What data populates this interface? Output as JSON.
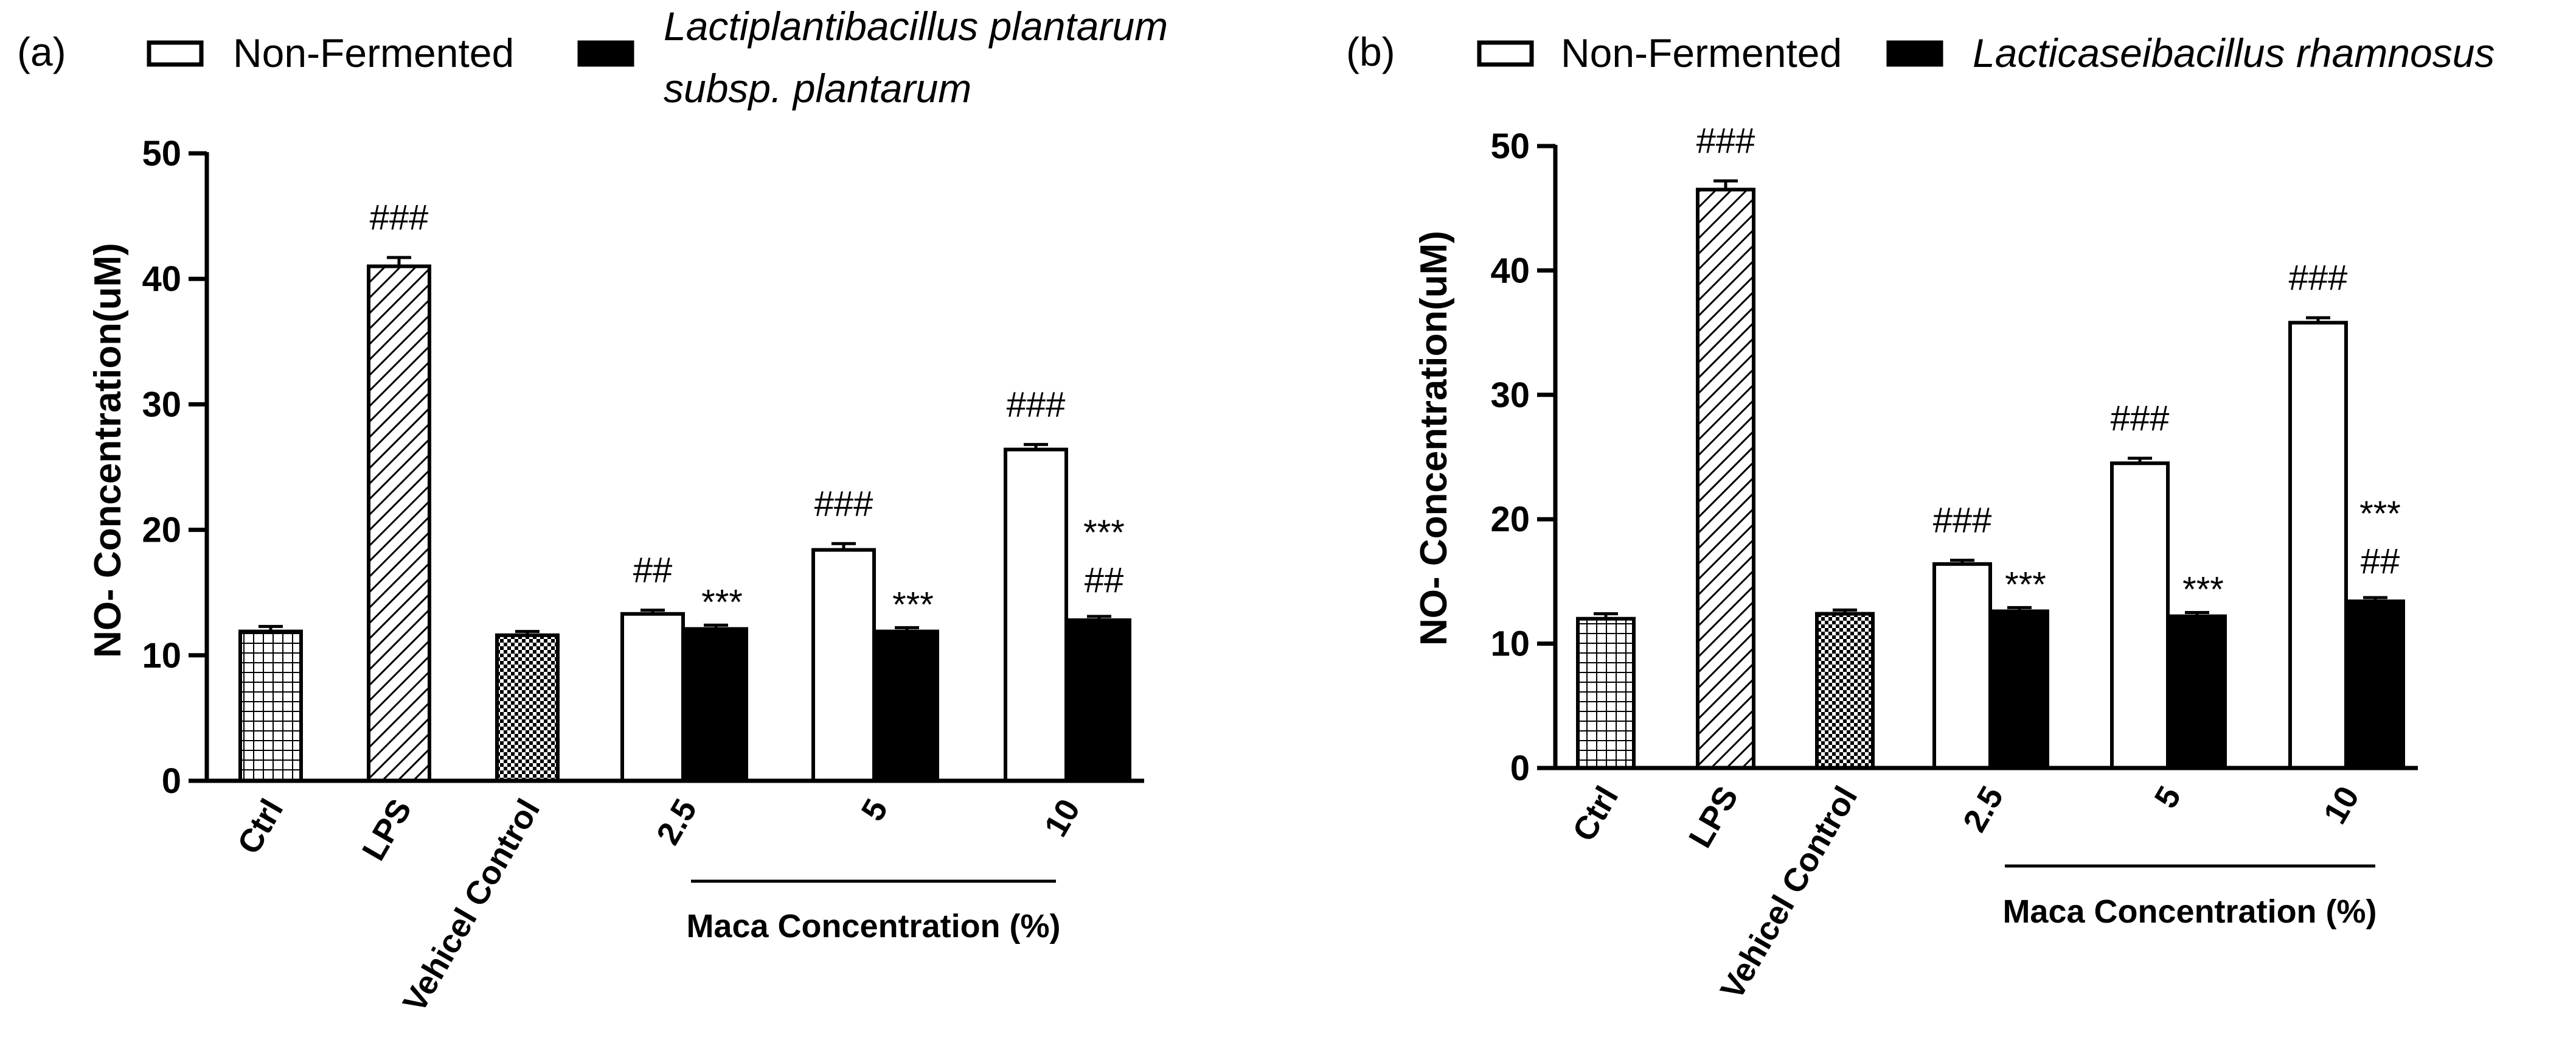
{
  "chart_data": [
    {
      "type": "bar",
      "panel_label": "(a)",
      "ylabel": "NO- Concentration(uM)",
      "ylim": [
        0,
        50
      ],
      "yticks": [
        0,
        10,
        20,
        30,
        40,
        50
      ],
      "xgroup_label": "Maca Concentration (%)",
      "legend": {
        "nonfermented": "Non-Fermented",
        "fermented_line1": "Lactiplantibacillus plantarum",
        "fermented_line2": "subsp. plantarum"
      },
      "controls": [
        {
          "label": "Ctrl",
          "value": 11.9,
          "error": 0.4,
          "pattern": "grid",
          "annotation": ""
        },
        {
          "label": "LPS",
          "value": 41.0,
          "error": 0.7,
          "pattern": "hatch",
          "annotation": "###"
        },
        {
          "label": "Vehicel Control",
          "value": 11.6,
          "error": 0.3,
          "pattern": "checker",
          "annotation": ""
        }
      ],
      "groups": [
        {
          "label": "2.5",
          "nonfermented": 13.3,
          "nonfermented_error": 0.3,
          "nonfermented_ann": "##",
          "fermented": 12.1,
          "fermented_error": 0.3,
          "fermented_ann": "***",
          "fermented_ann2": ""
        },
        {
          "label": "5",
          "nonfermented": 18.4,
          "nonfermented_error": 0.5,
          "nonfermented_ann": "###",
          "fermented": 11.9,
          "fermented_error": 0.3,
          "fermented_ann": "***",
          "fermented_ann2": ""
        },
        {
          "label": "10",
          "nonfermented": 26.4,
          "nonfermented_error": 0.4,
          "nonfermented_ann": "###",
          "fermented": 12.8,
          "fermented_error": 0.3,
          "fermented_ann": "***",
          "fermented_ann2": "##"
        }
      ]
    },
    {
      "type": "bar",
      "panel_label": "(b)",
      "ylabel": "NO- Concentration(uM)",
      "ylim": [
        0,
        50
      ],
      "yticks": [
        0,
        10,
        20,
        30,
        40,
        50
      ],
      "xgroup_label": "Maca Concentration (%)",
      "legend": {
        "nonfermented": "Non-Fermented",
        "fermented_line1": "Lacticaseibacillus rhamnosus",
        "fermented_line2": ""
      },
      "controls": [
        {
          "label": "Ctrl",
          "value": 12.0,
          "error": 0.4,
          "pattern": "grid",
          "annotation": ""
        },
        {
          "label": "LPS",
          "value": 46.5,
          "error": 0.7,
          "pattern": "hatch",
          "annotation": "###"
        },
        {
          "label": "Vehicel Control",
          "value": 12.4,
          "error": 0.3,
          "pattern": "checker",
          "annotation": ""
        }
      ],
      "groups": [
        {
          "label": "2.5",
          "nonfermented": 16.4,
          "nonfermented_error": 0.3,
          "nonfermented_ann": "###",
          "fermented": 12.6,
          "fermented_error": 0.3,
          "fermented_ann": "***",
          "fermented_ann2": ""
        },
        {
          "label": "5",
          "nonfermented": 24.5,
          "nonfermented_error": 0.4,
          "nonfermented_ann": "###",
          "fermented": 12.2,
          "fermented_error": 0.3,
          "fermented_ann": "***",
          "fermented_ann2": ""
        },
        {
          "label": "10",
          "nonfermented": 35.8,
          "nonfermented_error": 0.4,
          "nonfermented_ann": "###",
          "fermented": 13.4,
          "fermented_error": 0.3,
          "fermented_ann": "***",
          "fermented_ann2": "##"
        }
      ]
    }
  ]
}
